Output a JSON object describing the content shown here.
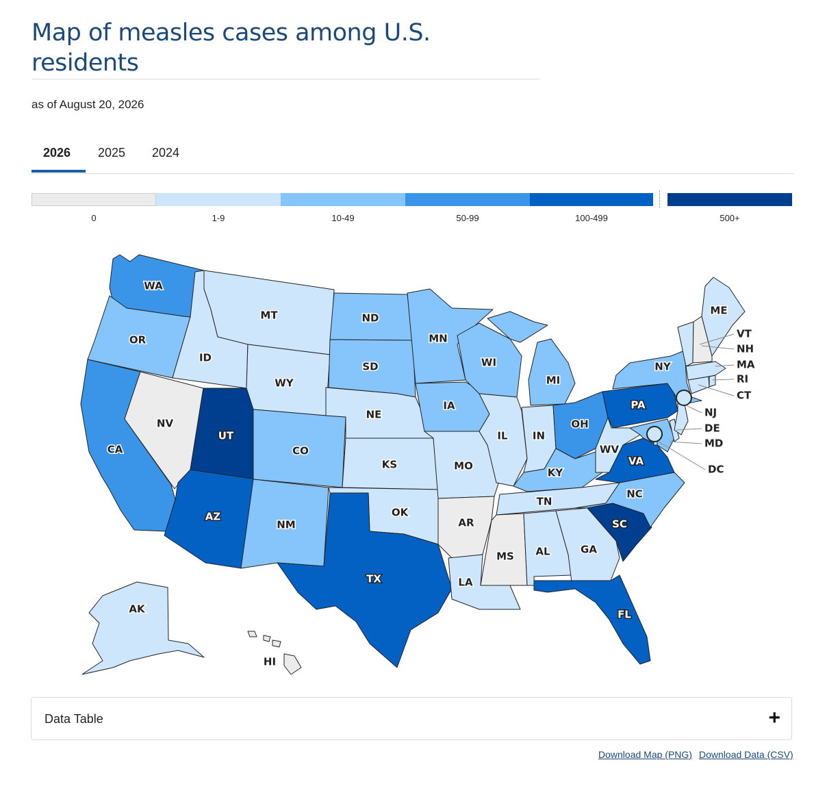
{
  "header": {
    "title": "Map of measles cases among U.S. residents",
    "subtitle": "as of August 20, 2026"
  },
  "tabs": [
    {
      "label": "2026",
      "active": true
    },
    {
      "label": "2025",
      "active": false
    },
    {
      "label": "2024",
      "active": false
    }
  ],
  "legend": [
    {
      "label": "0",
      "color": "#ececec"
    },
    {
      "label": "1-9",
      "color": "#cde6fc"
    },
    {
      "label": "10-49",
      "color": "#86c5fb"
    },
    {
      "label": "50-99",
      "color": "#3a95e8"
    },
    {
      "label": "100-499",
      "color": "#0461c4"
    },
    {
      "label": "500+",
      "color": "#003e90"
    }
  ],
  "states": {
    "WA": 3,
    "OR": 2,
    "CA": 3,
    "NV": 0,
    "ID": 1,
    "MT": 1,
    "WY": 1,
    "UT": 5,
    "AZ": 4,
    "CO": 2,
    "NM": 2,
    "ND": 2,
    "SD": 2,
    "NE": 1,
    "KS": 1,
    "OK": 1,
    "TX": 4,
    "MN": 2,
    "IA": 2,
    "MO": 1,
    "AR": 0,
    "LA": 1,
    "WI": 2,
    "IL": 1,
    "MI": 2,
    "IN": 1,
    "OH": 3,
    "KY": 2,
    "TN": 1,
    "MS": 0,
    "AL": 1,
    "GA": 1,
    "FL": 4,
    "SC": 5,
    "NC": 2,
    "VA": 4,
    "WV": 1,
    "PA": 4,
    "NY": 2,
    "ME": 1,
    "VT": 1,
    "NH": 0,
    "MA": 1,
    "RI": 1,
    "CT": 1,
    "NJ": 1,
    "DE": 1,
    "MD": 2,
    "DC": 1,
    "AK": 1,
    "HI": 0
  },
  "labels": {
    "WA": "WA",
    "OR": "OR",
    "CA": "CA",
    "NV": "NV",
    "ID": "ID",
    "MT": "MT",
    "WY": "WY",
    "UT": "UT",
    "AZ": "AZ",
    "CO": "CO",
    "NM": "NM",
    "ND": "ND",
    "SD": "SD",
    "NE": "NE",
    "KS": "KS",
    "OK": "OK",
    "TX": "TX",
    "MN": "MN",
    "IA": "IA",
    "MO": "MO",
    "AR": "AR",
    "LA": "LA",
    "WI": "WI",
    "IL": "IL",
    "MI": "MI",
    "IN": "IN",
    "OH": "OH",
    "KY": "KY",
    "TN": "TN",
    "MS": "MS",
    "AL": "AL",
    "GA": "GA",
    "FL": "FL",
    "SC": "SC",
    "NC": "NC",
    "VA": "VA",
    "WV": "WV",
    "PA": "PA",
    "NY": "NY",
    "ME": "ME",
    "AK": "AK",
    "HI": "HI",
    "VT": "VT",
    "NH": "NH",
    "MA": "MA",
    "RI": "RI",
    "CT": "CT",
    "NJ": "NJ",
    "DE": "DE",
    "MD": "MD",
    "DC": "DC"
  },
  "data_table": {
    "label": "Data Table",
    "toggle": "+"
  },
  "downloads": {
    "png": "Download Map (PNG)",
    "csv": "Download Data (CSV)"
  }
}
